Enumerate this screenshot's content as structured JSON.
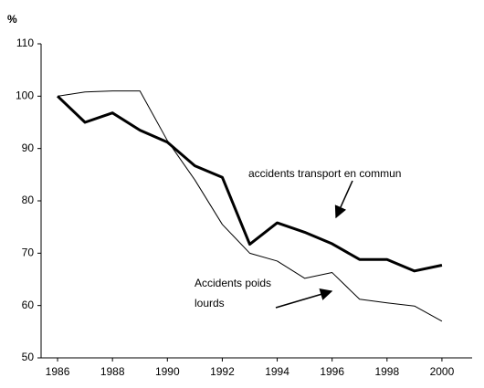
{
  "chart_data": {
    "type": "line",
    "y_label": "%",
    "x": [
      1986,
      1987,
      1988,
      1989,
      1990,
      1991,
      1992,
      1993,
      1994,
      1995,
      1996,
      1997,
      1998,
      1999,
      2000
    ],
    "series": [
      {
        "name": "accidents transport en commun",
        "color": "#000000",
        "width": 3,
        "values": [
          100,
          95,
          96.8,
          93.5,
          91.2,
          86.7,
          84.5,
          71.7,
          75.8,
          74,
          71.8,
          68.8,
          68.8,
          66.6,
          67.7
        ]
      },
      {
        "name": "Accidents poids lourds",
        "color": "#000000",
        "width": 1,
        "values": [
          100,
          100.8,
          101,
          101,
          91.5,
          84,
          75.5,
          70,
          68.5,
          65.2,
          66.3,
          61.2,
          60.5,
          59.9,
          57
        ]
      }
    ],
    "annotations": [
      {
        "lines": [
          "accidents transport en commun"
        ]
      },
      {
        "lines": [
          "Accidents poids",
          "lourds"
        ]
      }
    ],
    "xlim": [
      1985.4,
      2001.1
    ],
    "xticks": [
      1986,
      1988,
      1990,
      1992,
      1994,
      1996,
      1998,
      2000
    ],
    "ylim": [
      50,
      110
    ],
    "yticks": [
      50,
      60,
      70,
      80,
      90,
      100,
      110
    ],
    "grid": false
  }
}
